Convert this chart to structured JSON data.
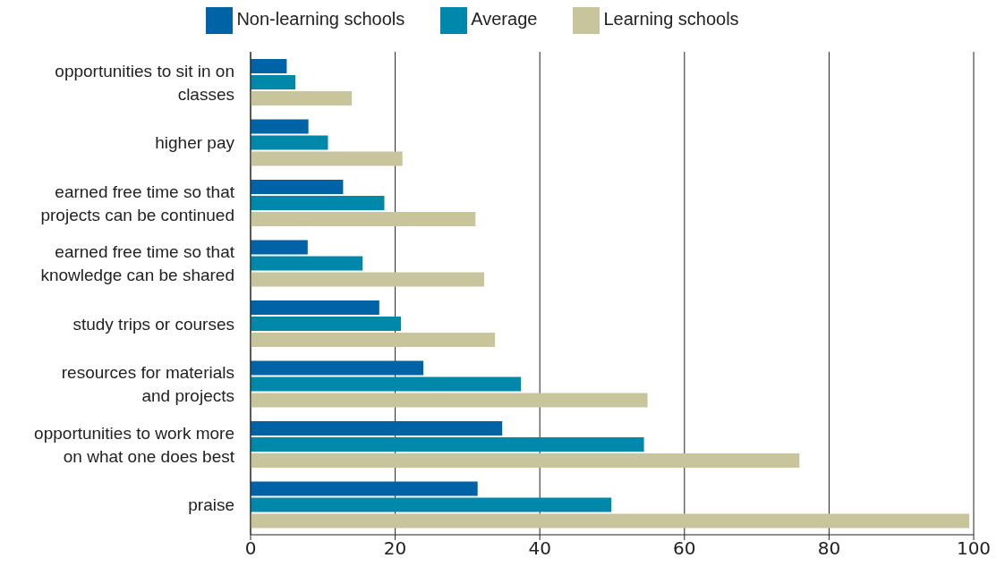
{
  "chart_data": {
    "type": "bar",
    "orientation": "horizontal",
    "categories": [
      "opportunities to sit in on classes",
      "higher pay",
      "earned free time so that projects can be continued",
      "earned free time so that knowledge can be shared",
      "study trips or courses",
      "resources for materials and projects",
      "opportunities to work more on what one does best",
      "praise"
    ],
    "series": [
      {
        "name": "Non-learning schools",
        "color": "#0063a6",
        "values": [
          5,
          8,
          12.8,
          7.9,
          17.8,
          23.9,
          34.8,
          31.4
        ]
      },
      {
        "name": "Average",
        "color": "#0088aa",
        "values": [
          6.2,
          10.7,
          18.5,
          15.5,
          20.8,
          37.4,
          54.4,
          49.9
        ]
      },
      {
        "name": "Learning schools",
        "color": "#c8c49c",
        "values": [
          14,
          21,
          31.1,
          32.3,
          33.8,
          54.9,
          75.9,
          99.4
        ]
      }
    ],
    "xlim": [
      0,
      100
    ],
    "xticks": [
      0,
      20,
      40,
      60,
      80,
      100
    ],
    "grid": "x",
    "legend": "top"
  }
}
